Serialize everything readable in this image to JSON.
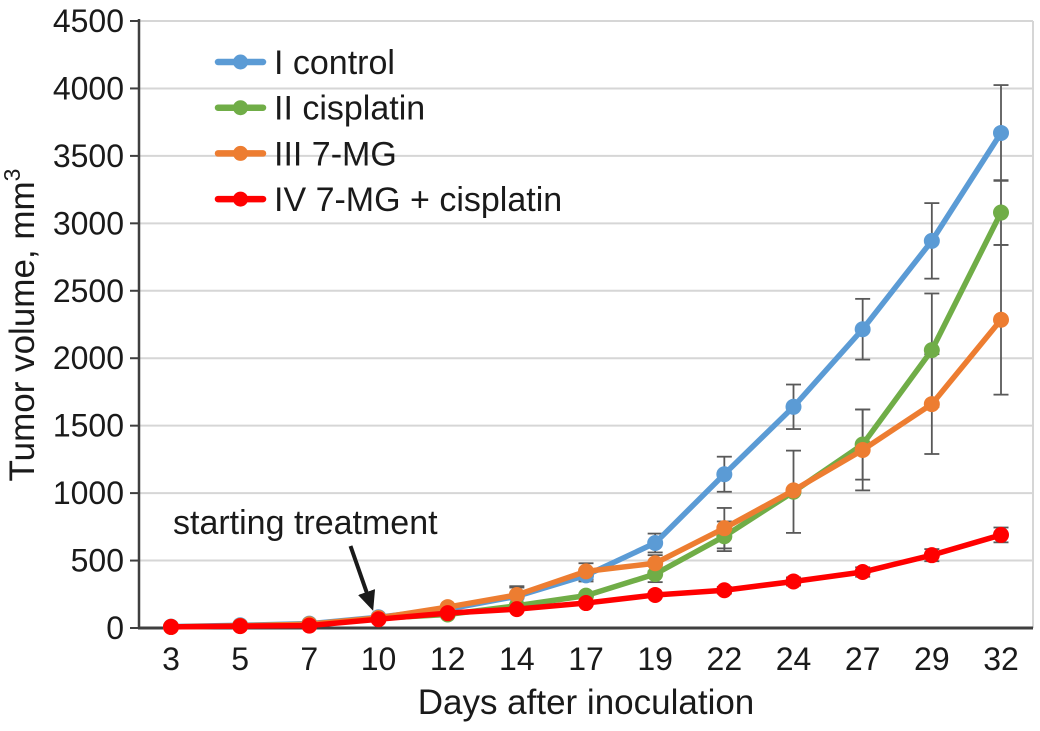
{
  "chart_data": {
    "type": "line",
    "title": "",
    "xlabel": "Days after inoculation",
    "ylabel": "Tumor volume, mm",
    "ylabel_superscript": "3",
    "categories": [
      3,
      5,
      7,
      10,
      12,
      14,
      17,
      19,
      22,
      24,
      27,
      29,
      32
    ],
    "x_tick_labels": [
      "3",
      "5",
      "7",
      "10",
      "12",
      "14",
      "17",
      "19",
      "22",
      "24",
      "27",
      "29",
      "32"
    ],
    "ylim": [
      0,
      4500
    ],
    "yticks": [
      0,
      500,
      1000,
      1500,
      2000,
      2500,
      3000,
      3500,
      4000,
      4500
    ],
    "grid": "horizontal",
    "legend_position": "top-left-inside",
    "series": [
      {
        "name": "I control",
        "color": "#5B9BD5",
        "values": [
          10,
          20,
          32,
          80,
          140,
          235,
          390,
          630,
          1140,
          1640,
          2215,
          2870,
          3670
        ],
        "errors": [
          0,
          0,
          0,
          0,
          0,
          65,
          45,
          70,
          130,
          165,
          225,
          280,
          355
        ]
      },
      {
        "name": "II cisplatin",
        "color": "#70AD47",
        "values": [
          8,
          16,
          28,
          72,
          100,
          165,
          240,
          400,
          680,
          1010,
          1360,
          2060,
          3080
        ],
        "errors": [
          0,
          0,
          0,
          0,
          0,
          0,
          0,
          60,
          110,
          305,
          260,
          420,
          240
        ]
      },
      {
        "name": "III 7-MG",
        "color": "#ED7D31",
        "values": [
          8,
          16,
          28,
          75,
          155,
          245,
          420,
          480,
          740,
          1020,
          1320,
          1660,
          2285
        ],
        "errors": [
          0,
          0,
          0,
          0,
          0,
          65,
          60,
          60,
          150,
          0,
          300,
          370,
          555
        ]
      },
      {
        "name": "IV 7-MG + cisplatin",
        "color": "#FF0000",
        "values": [
          8,
          14,
          18,
          65,
          110,
          140,
          185,
          245,
          280,
          345,
          415,
          540,
          690
        ],
        "errors": [
          0,
          0,
          0,
          0,
          0,
          0,
          0,
          0,
          25,
          30,
          35,
          45,
          55
        ]
      }
    ],
    "annotation": {
      "text": "starting treatment",
      "arrow_target_day": 10
    }
  },
  "colors": {
    "axis": "#3F3F3F",
    "grid": "#D6D6D6",
    "error_bar": "#595959",
    "text": "#1A1A1A",
    "background": "#FFFFFF"
  }
}
